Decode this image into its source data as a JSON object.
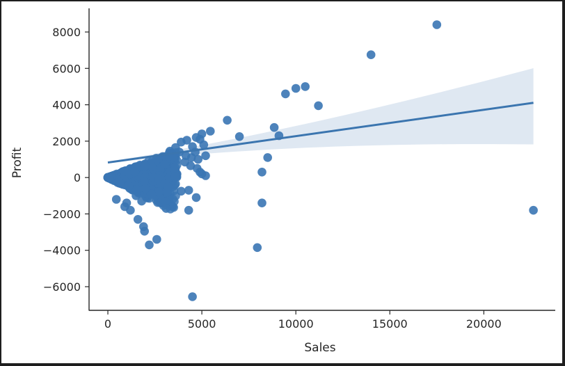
{
  "chart_data": {
    "type": "scatter",
    "title": "",
    "xlabel": "Sales",
    "ylabel": "Profit",
    "xlim": [
      -1000,
      23800
    ],
    "ylim": [
      -7300,
      9300
    ],
    "x_ticks": [
      0,
      5000,
      10000,
      15000,
      20000
    ],
    "y_ticks": [
      -6000,
      -4000,
      -2000,
      0,
      2000,
      4000,
      6000,
      8000
    ],
    "x_tick_labels": [
      "0",
      "5000",
      "10000",
      "15000",
      "20000"
    ],
    "y_tick_labels": [
      "−6000",
      "−4000",
      "−2000",
      "0",
      "2000",
      "4000",
      "6000",
      "8000"
    ],
    "grid": false,
    "point_color": "#3a76b4",
    "regression": {
      "x_range": [
        0,
        22638
      ],
      "slope": 0.145,
      "intercept": 825,
      "ci_upper_end": 5950,
      "ci_lower_end": 1880,
      "line_color": "#3b75af",
      "band_color": "#dbe6f1"
    },
    "points": [
      [
        17500,
        8400
      ],
      [
        14000,
        6750
      ],
      [
        10500,
        5000
      ],
      [
        10000,
        4900
      ],
      [
        9450,
        4600
      ],
      [
        11200,
        3950
      ],
      [
        6350,
        3150
      ],
      [
        8850,
        2750
      ],
      [
        9100,
        2300
      ],
      [
        7000,
        2250
      ],
      [
        5450,
        2550
      ],
      [
        5000,
        2400
      ],
      [
        4900,
        2100
      ],
      [
        4700,
        2200
      ],
      [
        4200,
        2050
      ],
      [
        3900,
        1950
      ],
      [
        4500,
        1700
      ],
      [
        4650,
        1400
      ],
      [
        5100,
        1800
      ],
      [
        5200,
        1200
      ],
      [
        4450,
        1100
      ],
      [
        4800,
        1000
      ],
      [
        4150,
        1200
      ],
      [
        3800,
        1400
      ],
      [
        3600,
        1650
      ],
      [
        3300,
        1450
      ],
      [
        3500,
        1100
      ],
      [
        8500,
        1100
      ],
      [
        8200,
        300
      ],
      [
        4100,
        850
      ],
      [
        4400,
        650
      ],
      [
        4750,
        500
      ],
      [
        4900,
        300
      ],
      [
        5000,
        200
      ],
      [
        5200,
        100
      ],
      [
        4300,
        -700
      ],
      [
        3900,
        -750
      ],
      [
        3600,
        -350
      ],
      [
        3200,
        -500
      ],
      [
        4700,
        -1100
      ],
      [
        8200,
        -1400
      ],
      [
        3100,
        -1700
      ],
      [
        4300,
        -1800
      ],
      [
        7950,
        -3850
      ],
      [
        4500,
        -6550
      ],
      [
        2600,
        -3400
      ],
      [
        2200,
        -3700
      ],
      [
        1900,
        -2700
      ],
      [
        1950,
        -2950
      ],
      [
        1600,
        -2300
      ],
      [
        1200,
        -1800
      ],
      [
        1000,
        -1400
      ],
      [
        900,
        -1600
      ],
      [
        450,
        -1200
      ],
      [
        1500,
        -1000
      ],
      [
        1800,
        -1300
      ],
      [
        2500,
        -1000
      ],
      [
        2700,
        -800
      ],
      [
        2300,
        -900
      ],
      [
        2000,
        -600
      ],
      [
        22638,
        -1800
      ]
    ],
    "cluster": {
      "description_of_points": "dense cluster of many small orders",
      "x_max": 3700,
      "profit_upper_slope": 0.42,
      "profit_lower_slope": -0.55,
      "count": 900
    }
  }
}
